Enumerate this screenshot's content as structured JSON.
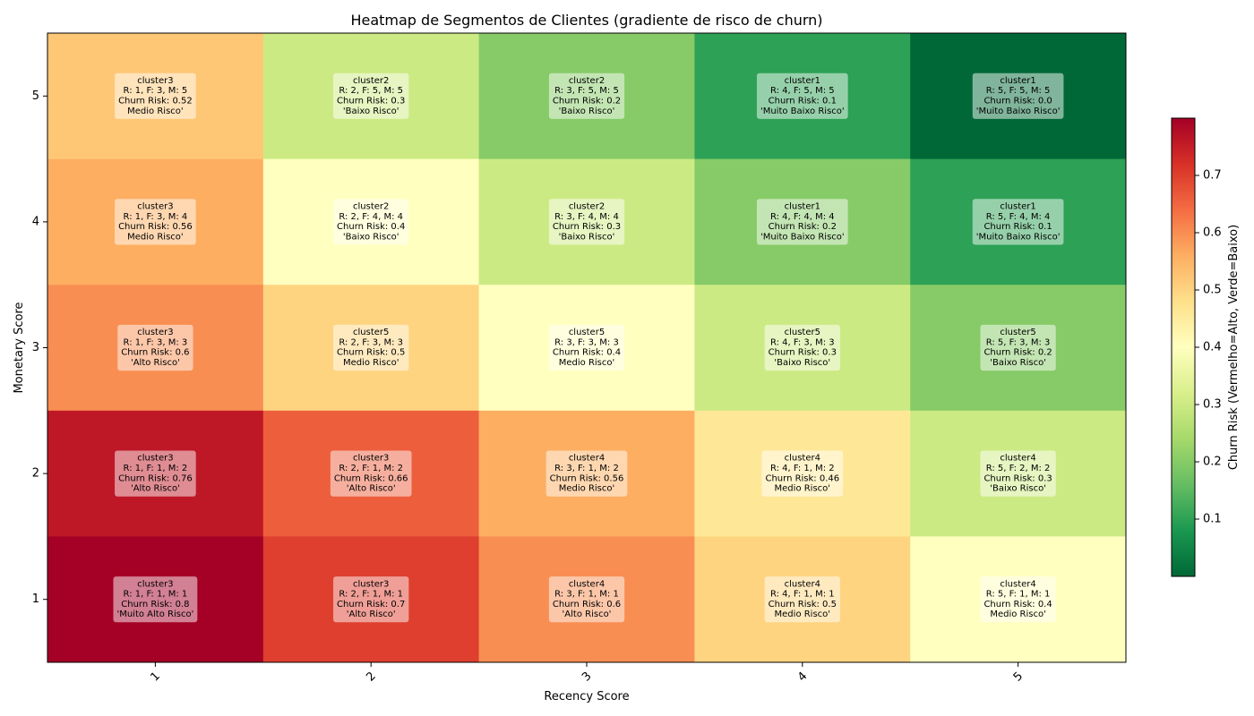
{
  "chart_data": {
    "type": "heatmap",
    "title": "Heatmap de Segmentos de Clientes (gradiente de risco de churn)",
    "xlabel": "Recency Score",
    "ylabel": "Monetary Score",
    "x_categories": [
      "1",
      "2",
      "3",
      "4",
      "5"
    ],
    "y_categories": [
      "1",
      "2",
      "3",
      "4",
      "5"
    ],
    "colorbar": {
      "label": "Churn Risk (Vermelho=Alto, Verde=Baixo)",
      "range": [
        0.0,
        0.8
      ],
      "ticks": [
        "0.1",
        "0.2",
        "0.3",
        "0.4",
        "0.5",
        "0.6",
        "0.7"
      ],
      "colormap": "RdYlGn_r"
    },
    "cells": [
      {
        "r": 1,
        "m": 5,
        "value": 0.52,
        "lines": [
          "cluster3",
          "R: 1, F: 3, M: 5",
          "Churn Risk: 0.52",
          "Medio Risco'"
        ]
      },
      {
        "r": 2,
        "m": 5,
        "value": 0.3,
        "lines": [
          "cluster2",
          "R: 2, F: 5, M: 5",
          "Churn Risk: 0.3",
          "'Baixo Risco'"
        ]
      },
      {
        "r": 3,
        "m": 5,
        "value": 0.2,
        "lines": [
          "cluster2",
          "R: 3, F: 5, M: 5",
          "Churn Risk: 0.2",
          "'Baixo Risco'"
        ]
      },
      {
        "r": 4,
        "m": 5,
        "value": 0.1,
        "lines": [
          "cluster1",
          "R: 4, F: 5, M: 5",
          "Churn Risk: 0.1",
          "'Muito Baixo Risco'"
        ]
      },
      {
        "r": 5,
        "m": 5,
        "value": 0.0,
        "lines": [
          "cluster1",
          "R: 5, F: 5, M: 5",
          "Churn Risk: 0.0",
          "'Muito Baixo Risco'"
        ]
      },
      {
        "r": 1,
        "m": 4,
        "value": 0.56,
        "lines": [
          "cluster3",
          "R: 1, F: 3, M: 4",
          "Churn Risk: 0.56",
          "Medio Risco'"
        ]
      },
      {
        "r": 2,
        "m": 4,
        "value": 0.4,
        "lines": [
          "cluster2",
          "R: 2, F: 4, M: 4",
          "Churn Risk: 0.4",
          "'Baixo Risco'"
        ]
      },
      {
        "r": 3,
        "m": 4,
        "value": 0.3,
        "lines": [
          "cluster2",
          "R: 3, F: 4, M: 4",
          "Churn Risk: 0.3",
          "'Baixo Risco'"
        ]
      },
      {
        "r": 4,
        "m": 4,
        "value": 0.2,
        "lines": [
          "cluster1",
          "R: 4, F: 4, M: 4",
          "Churn Risk: 0.2",
          "'Muito Baixo Risco'"
        ]
      },
      {
        "r": 5,
        "m": 4,
        "value": 0.1,
        "lines": [
          "cluster1",
          "R: 5, F: 4, M: 4",
          "Churn Risk: 0.1",
          "'Muito Baixo Risco'"
        ]
      },
      {
        "r": 1,
        "m": 3,
        "value": 0.6,
        "lines": [
          "cluster3",
          "R: 1, F: 3, M: 3",
          "Churn Risk: 0.6",
          "'Alto Risco'"
        ]
      },
      {
        "r": 2,
        "m": 3,
        "value": 0.5,
        "lines": [
          "cluster5",
          "R: 2, F: 3, M: 3",
          "Churn Risk: 0.5",
          "Medio Risco'"
        ]
      },
      {
        "r": 3,
        "m": 3,
        "value": 0.4,
        "lines": [
          "cluster5",
          "R: 3, F: 3, M: 3",
          "Churn Risk: 0.4",
          "Medio Risco'"
        ]
      },
      {
        "r": 4,
        "m": 3,
        "value": 0.3,
        "lines": [
          "cluster5",
          "R: 4, F: 3, M: 3",
          "Churn Risk: 0.3",
          "'Baixo Risco'"
        ]
      },
      {
        "r": 5,
        "m": 3,
        "value": 0.2,
        "lines": [
          "cluster5",
          "R: 5, F: 3, M: 3",
          "Churn Risk: 0.2",
          "'Baixo Risco'"
        ]
      },
      {
        "r": 1,
        "m": 2,
        "value": 0.76,
        "lines": [
          "cluster3",
          "R: 1, F: 1, M: 2",
          "Churn Risk: 0.76",
          "'Alto Risco'"
        ]
      },
      {
        "r": 2,
        "m": 2,
        "value": 0.66,
        "lines": [
          "cluster3",
          "R: 2, F: 1, M: 2",
          "Churn Risk: 0.66",
          "'Alto Risco'"
        ]
      },
      {
        "r": 3,
        "m": 2,
        "value": 0.56,
        "lines": [
          "cluster4",
          "R: 3, F: 1, M: 2",
          "Churn Risk: 0.56",
          "Medio Risco'"
        ]
      },
      {
        "r": 4,
        "m": 2,
        "value": 0.46,
        "lines": [
          "cluster4",
          "R: 4, F: 1, M: 2",
          "Churn Risk: 0.46",
          "Medio Risco'"
        ]
      },
      {
        "r": 5,
        "m": 2,
        "value": 0.3,
        "lines": [
          "cluster4",
          "R: 5, F: 2, M: 2",
          "Churn Risk: 0.3",
          "'Baixo Risco'"
        ]
      },
      {
        "r": 1,
        "m": 1,
        "value": 0.8,
        "lines": [
          "cluster3",
          "R: 1, F: 1, M: 1",
          "Churn Risk: 0.8",
          "'Muito Alto Risco'"
        ]
      },
      {
        "r": 2,
        "m": 1,
        "value": 0.7,
        "lines": [
          "cluster3",
          "R: 2, F: 1, M: 1",
          "Churn Risk: 0.7",
          "'Alto Risco'"
        ]
      },
      {
        "r": 3,
        "m": 1,
        "value": 0.6,
        "lines": [
          "cluster4",
          "R: 3, F: 1, M: 1",
          "Churn Risk: 0.6",
          "'Alto Risco'"
        ]
      },
      {
        "r": 4,
        "m": 1,
        "value": 0.5,
        "lines": [
          "cluster4",
          "R: 4, F: 1, M: 1",
          "Churn Risk: 0.5",
          "Medio Risco'"
        ]
      },
      {
        "r": 5,
        "m": 1,
        "value": 0.4,
        "lines": [
          "cluster4",
          "R: 5, F: 1, M: 1",
          "Churn Risk: 0.4",
          "Medio Risco'"
        ]
      }
    ]
  }
}
